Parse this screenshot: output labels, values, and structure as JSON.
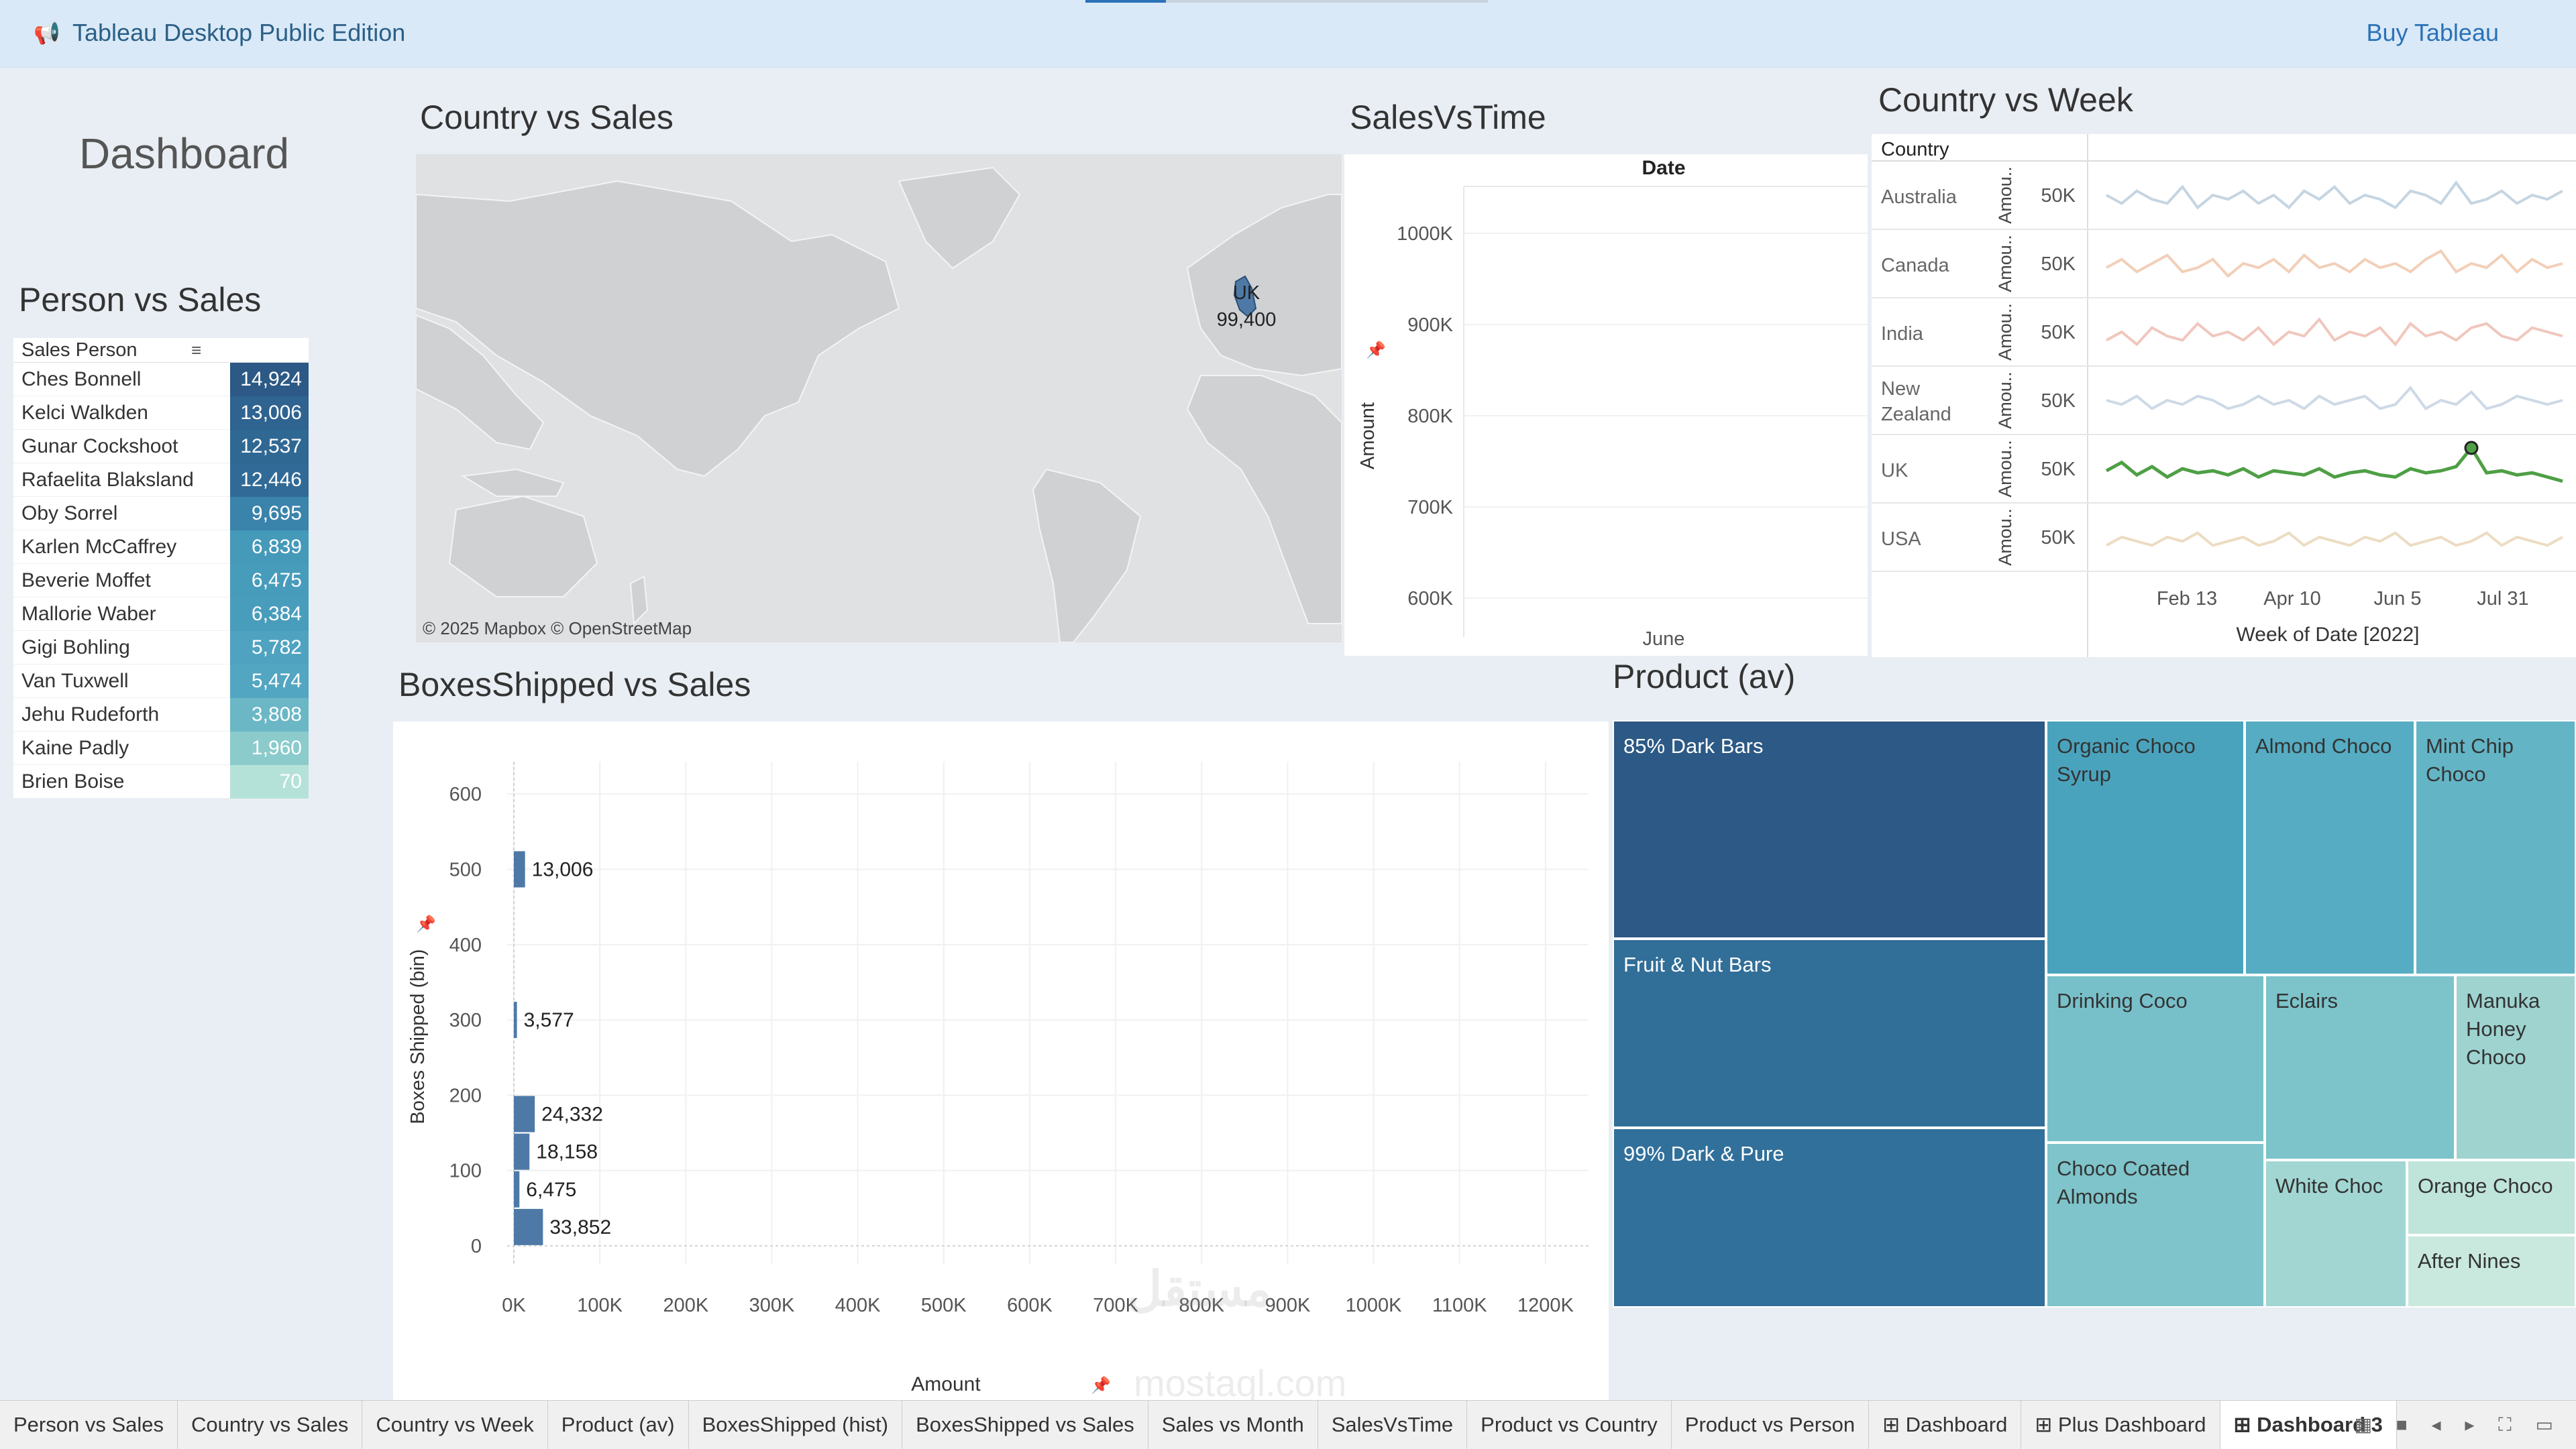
{
  "app": {
    "title": "Tableau Desktop Public Edition",
    "buy_label": "Buy Tableau"
  },
  "dashboard_title": "Dashboard",
  "person_vs_sales": {
    "title": "Person vs Sales",
    "header": "Sales Person",
    "rows": [
      {
        "name": "Ches Bonnell",
        "value": "14,924",
        "color": "#2c5985"
      },
      {
        "name": "Kelci Walkden",
        "value": "13,006",
        "color": "#2f6390"
      },
      {
        "name": "Gunar Cockshoot",
        "value": "12,537",
        "color": "#306894"
      },
      {
        "name": "Rafaelita Blaksland",
        "value": "12,446",
        "color": "#316a96"
      },
      {
        "name": "Oby Sorrel",
        "value": "9,695",
        "color": "#3a83ab"
      },
      {
        "name": "Karlen McCaffrey",
        "value": "6,839",
        "color": "#4599b9"
      },
      {
        "name": "Beverie Moffet",
        "value": "6,475",
        "color": "#489cbb"
      },
      {
        "name": "Mallorie Waber",
        "value": "6,384",
        "color": "#499dbc"
      },
      {
        "name": "Gigi Bohling",
        "value": "5,782",
        "color": "#4fa3c0"
      },
      {
        "name": "Van Tuxwell",
        "value": "5,474",
        "color": "#53a6c2"
      },
      {
        "name": "Jehu Rudeforth",
        "value": "3,808",
        "color": "#6bb7c6"
      },
      {
        "name": "Kaine Padly",
        "value": "1,960",
        "color": "#8bcbcc"
      },
      {
        "name": "Brien Boise",
        "value": "70",
        "color": "#b5e2d8"
      }
    ]
  },
  "country_vs_sales": {
    "title": "Country vs Sales",
    "label_country": "UK",
    "label_value": "99,400",
    "credit": "© 2025 Mapbox © OpenStreetMap"
  },
  "sales_vs_time": {
    "title": "SalesVsTime",
    "column_header": "Date",
    "x_label": "June",
    "y_label": "Amount",
    "y_ticks": [
      "1000K",
      "900K",
      "800K",
      "700K",
      "600K"
    ]
  },
  "country_vs_week": {
    "title": "Country vs Week",
    "column_header": "Country",
    "axis_label": "Amou..",
    "tick_label": "50K",
    "countries": [
      "Australia",
      "Canada",
      "India",
      "New Zealand",
      "UK",
      "USA"
    ],
    "colors": [
      "#c5d5e2",
      "#f2cfb8",
      "#f0c7bd",
      "#cdd9e6",
      "#4e9f45",
      "#ecdcc2"
    ],
    "x_ticks": [
      "Feb 13",
      "Apr 10",
      "Jun 5",
      "Jul 31"
    ],
    "x_label": "Week of Date [2022]"
  },
  "boxes_vs_sales": {
    "title": "BoxesShipped vs Sales",
    "y_label": "Boxes Shipped (bin)",
    "x_label": "Amount",
    "y_ticks": [
      "600",
      "500",
      "400",
      "300",
      "200",
      "100",
      "0"
    ],
    "x_ticks": [
      "0K",
      "100K",
      "200K",
      "300K",
      "400K",
      "500K",
      "600K",
      "700K",
      "800K",
      "900K",
      "1000K",
      "1100K",
      "1200K"
    ]
  },
  "chart_data": {
    "type": "bar",
    "orientation": "horizontal",
    "title": "BoxesShipped vs Sales",
    "xlabel": "Amount",
    "ylabel": "Boxes Shipped (bin)",
    "xlim": [
      0,
      1250000
    ],
    "ylim": [
      0,
      650
    ],
    "bars": [
      {
        "bin": 500,
        "value": 13006,
        "label": "13,006"
      },
      {
        "bin": 300,
        "value": 3577,
        "label": "3,577"
      },
      {
        "bin": 175,
        "value": 24332,
        "label": "24,332"
      },
      {
        "bin": 125,
        "value": 18158,
        "label": "18,158"
      },
      {
        "bin": 75,
        "value": 6475,
        "label": "6,475"
      },
      {
        "bin": 25,
        "value": 33852,
        "label": "33,852"
      }
    ],
    "color": "#4e79a7"
  },
  "product_av": {
    "title": "Product (av)",
    "items": [
      {
        "name": "85% Dark Bars",
        "color": "#2c5985",
        "text": "light"
      },
      {
        "name": "Fruit & Nut Bars",
        "color": "#316e98",
        "text": "light"
      },
      {
        "name": "99% Dark & Pure",
        "color": "#31709a",
        "text": "light"
      },
      {
        "name": "Organic Choco Syrup",
        "color": "#4aa3bd",
        "text": "dark"
      },
      {
        "name": "Almond Choco",
        "color": "#55acc3",
        "text": "dark"
      },
      {
        "name": "Mint Chip Choco",
        "color": "#63b5c6",
        "text": "dark"
      },
      {
        "name": "Drinking Coco",
        "color": "#78c0c9",
        "text": "dark"
      },
      {
        "name": "Eclairs",
        "color": "#7cc3ca",
        "text": "dark"
      },
      {
        "name": "Manuka Honey Choco",
        "color": "#9ed3d0",
        "text": "dark"
      },
      {
        "name": "Choco Coated Almonds",
        "color": "#7ec4ca",
        "text": "dark"
      },
      {
        "name": "White Choc",
        "color": "#a2d6d2",
        "text": "dark"
      },
      {
        "name": "Orange Choco",
        "color": "#bfe4da",
        "text": "dark"
      },
      {
        "name": "After Nines",
        "color": "#c9e9de",
        "text": "dark"
      }
    ]
  },
  "tabs": [
    {
      "label": "Person vs Sales"
    },
    {
      "label": "Country vs Sales"
    },
    {
      "label": "Country vs Week"
    },
    {
      "label": "Product (av)"
    },
    {
      "label": "BoxesShipped (hist)"
    },
    {
      "label": "BoxesShipped vs Sales"
    },
    {
      "label": "Sales vs Month"
    },
    {
      "label": "SalesVsTime"
    },
    {
      "label": "Product vs Country"
    },
    {
      "label": "Product vs Person"
    },
    {
      "label": "⊞ Dashboard"
    },
    {
      "label": "⊞ Plus Dashboard"
    },
    {
      "label": "⊞ Dashboard 3"
    }
  ],
  "watermark": "مستقل",
  "watermark_sub": "mostaql.com"
}
